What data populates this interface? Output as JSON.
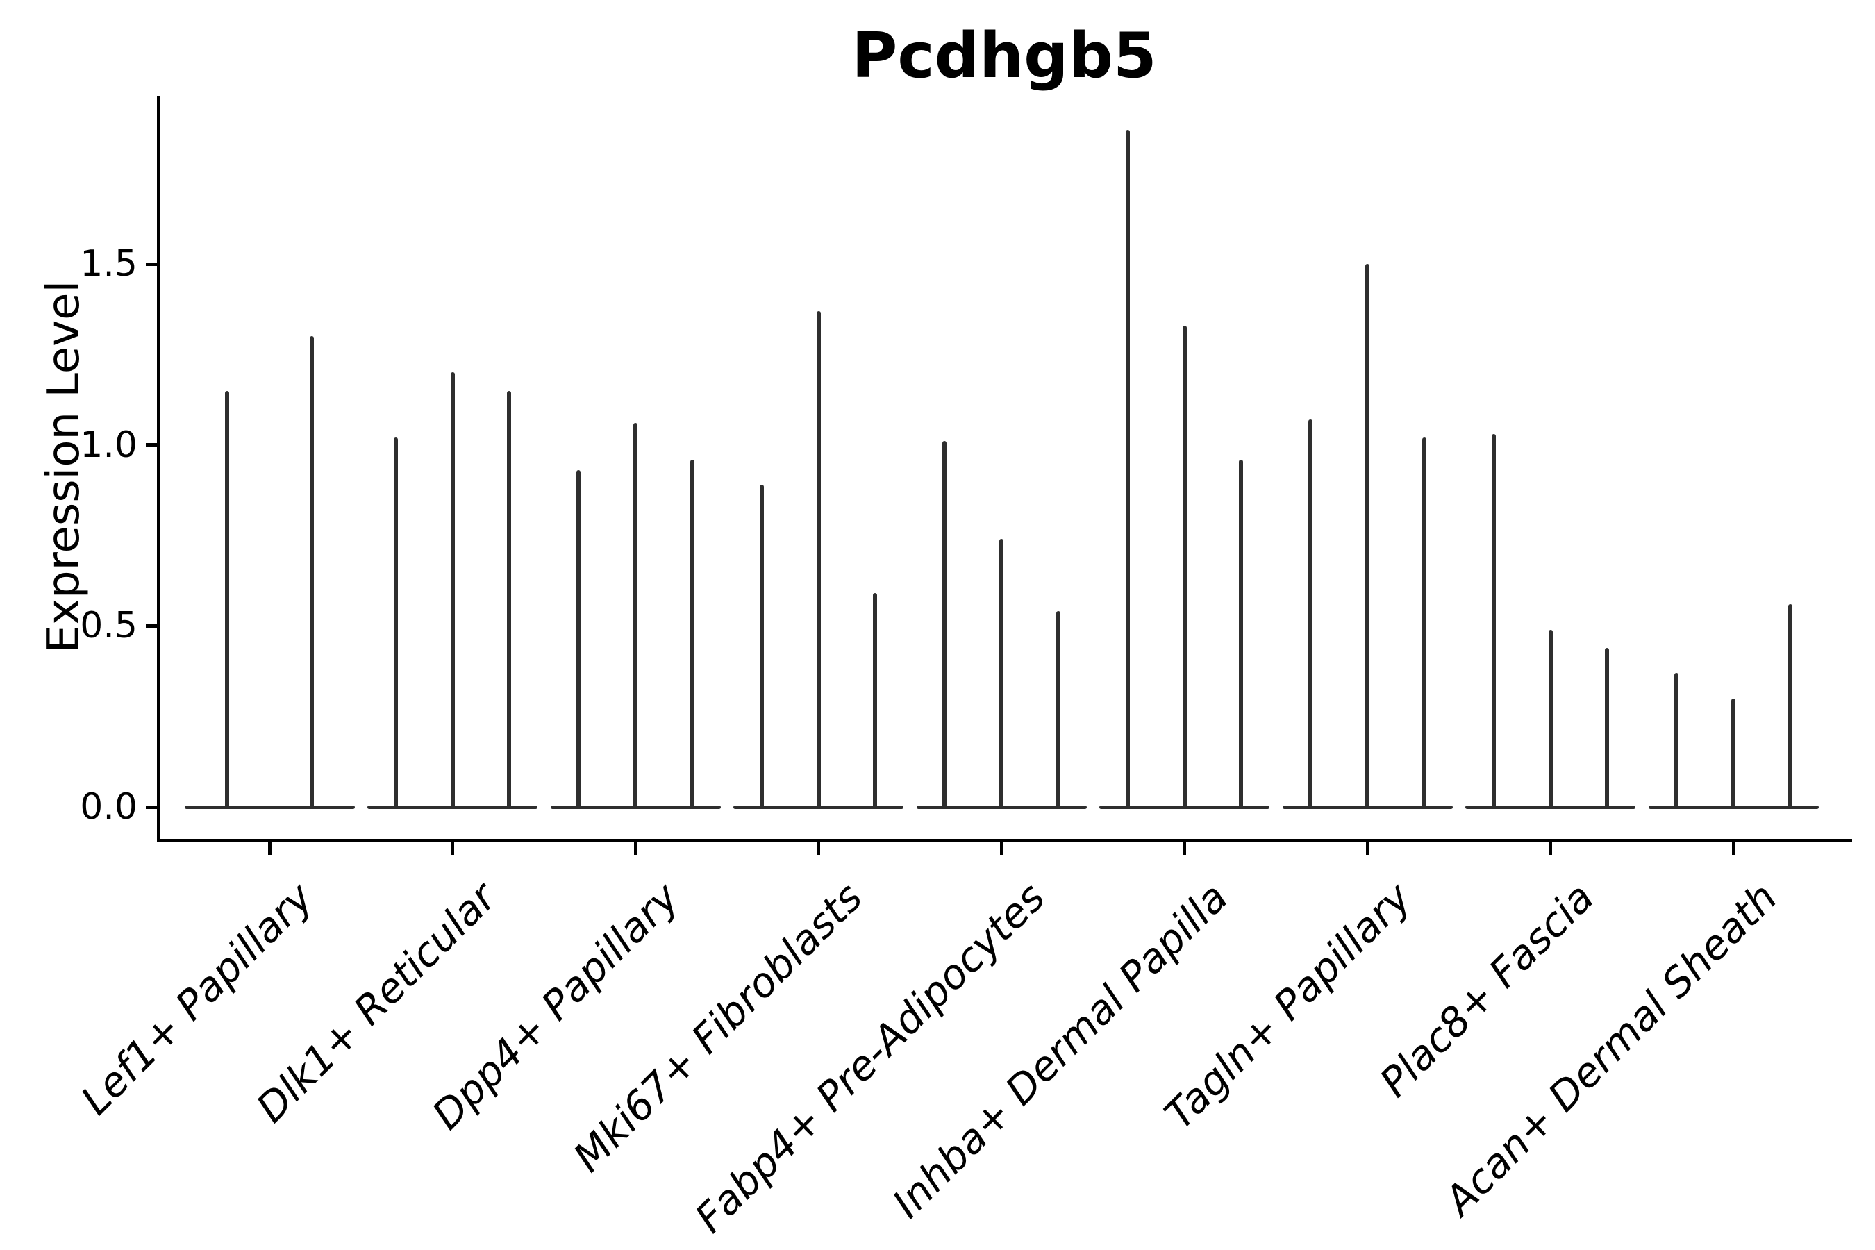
{
  "figure": {
    "kind": "violin-plot",
    "background": "#ffffff"
  },
  "chart_data": {
    "type": "violin",
    "title": "Pcdhgb5",
    "xlabel": "",
    "ylabel": "Expression Level",
    "categories": [
      "Lef1+ Papillary",
      "Dlk1+ Reticular",
      "Dpp4+ Papillary",
      "Mki67+ Fibroblasts",
      "Fabp4+ Pre-Adipocytes",
      "Inhba+ Dermal Papilla",
      "Tagln+ Papillary",
      "Plac8+ Fascia",
      "Acan+ Dermal Sheath"
    ],
    "series_note": "Each category shows 2-3 narrow spike-shaped violins; density mass sits at 0 (flat base strip) with a thin spike rising to the maximum expression value.",
    "violin_max_values": [
      [
        1.15,
        1.3
      ],
      [
        1.02,
        1.2,
        1.15
      ],
      [
        0.93,
        1.06,
        0.96
      ],
      [
        0.89,
        1.37,
        0.59
      ],
      [
        1.01,
        0.74,
        0.54
      ],
      [
        1.87,
        1.33,
        0.96
      ],
      [
        1.07,
        1.5,
        1.02
      ],
      [
        1.03,
        0.49,
        0.44
      ],
      [
        0.37,
        0.3,
        0.56
      ]
    ],
    "ytick_values": [
      0.0,
      0.5,
      1.0,
      1.5
    ],
    "ytick_labels": [
      "0.0",
      "0.5",
      "1.0",
      "1.5"
    ],
    "ylim": [
      -0.09,
      1.96
    ],
    "grid": "off",
    "legend": "none",
    "colors": {
      "violin": "#2e2e2e",
      "axis": "#000000",
      "text": "#000000",
      "background": "#ffffff"
    }
  }
}
